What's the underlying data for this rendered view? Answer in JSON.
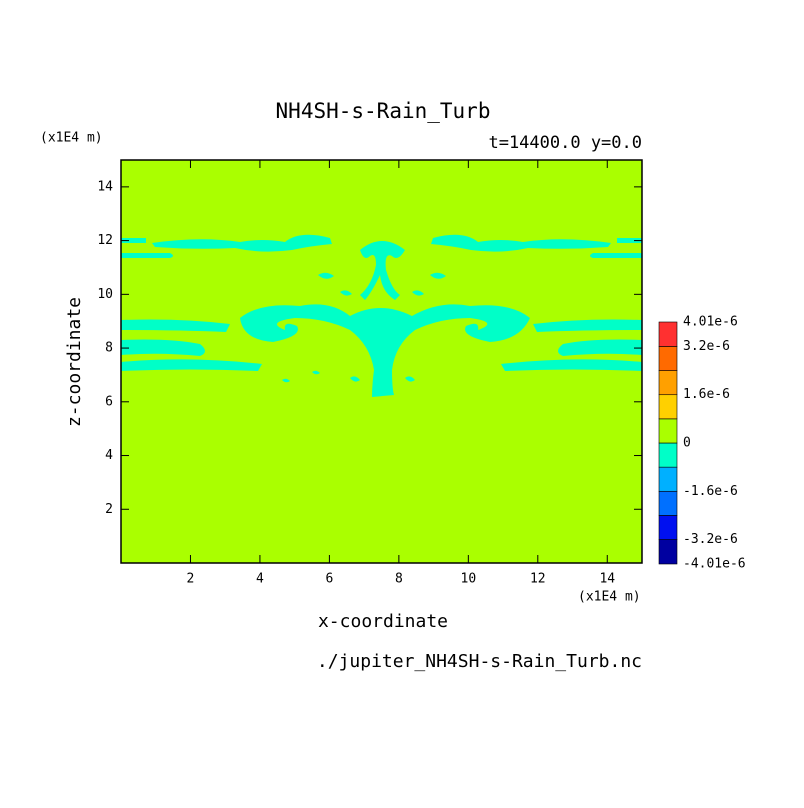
{
  "chart_data": {
    "type": "contour",
    "title": "NH4SH-s-Rain_Turb",
    "subtitle": "t=14400.0 y=0.0",
    "x_label": "x-coordinate",
    "y_label": "z-coordinate",
    "x_unit": "(x1E4 m)",
    "y_unit": "(x1E4 m)",
    "source": "./jupiter_NH4SH-s-Rain_Turb.nc",
    "xlim": [
      0,
      15
    ],
    "ylim": [
      0,
      15
    ],
    "xticks": [
      2,
      4,
      6,
      8,
      10,
      12,
      14
    ],
    "yticks": [
      2,
      4,
      6,
      8,
      10,
      12,
      14
    ],
    "levels": [
      -4.01e-06,
      -3.2e-06,
      -2.4e-06,
      -1.6e-06,
      -8e-07,
      0,
      8e-07,
      1.6e-06,
      2.4e-06,
      3.2e-06,
      4.01e-06
    ],
    "colors": [
      "#0000a0",
      "#0010f0",
      "#0070ff",
      "#00b0ff",
      "#00ffc8",
      "#aaff00",
      "#ffd000",
      "#ffa000",
      "#ff6a00",
      "#ff3030"
    ],
    "background_band": 5,
    "region_band": 4,
    "colorbar_ticks": [
      {
        "value": 4.01e-06,
        "label": "4.01e-6"
      },
      {
        "value": 3.2e-06,
        "label": "3.2e-6"
      },
      {
        "value": 1.6e-06,
        "label": "1.6e-6"
      },
      0,
      {
        "value": -1.6e-06,
        "label": "-1.6e-6"
      },
      {
        "value": -3.2e-06,
        "label": "-3.2e-6"
      },
      {
        "value": -4.01e-06,
        "label": "-4.01e-6"
      }
    ]
  }
}
